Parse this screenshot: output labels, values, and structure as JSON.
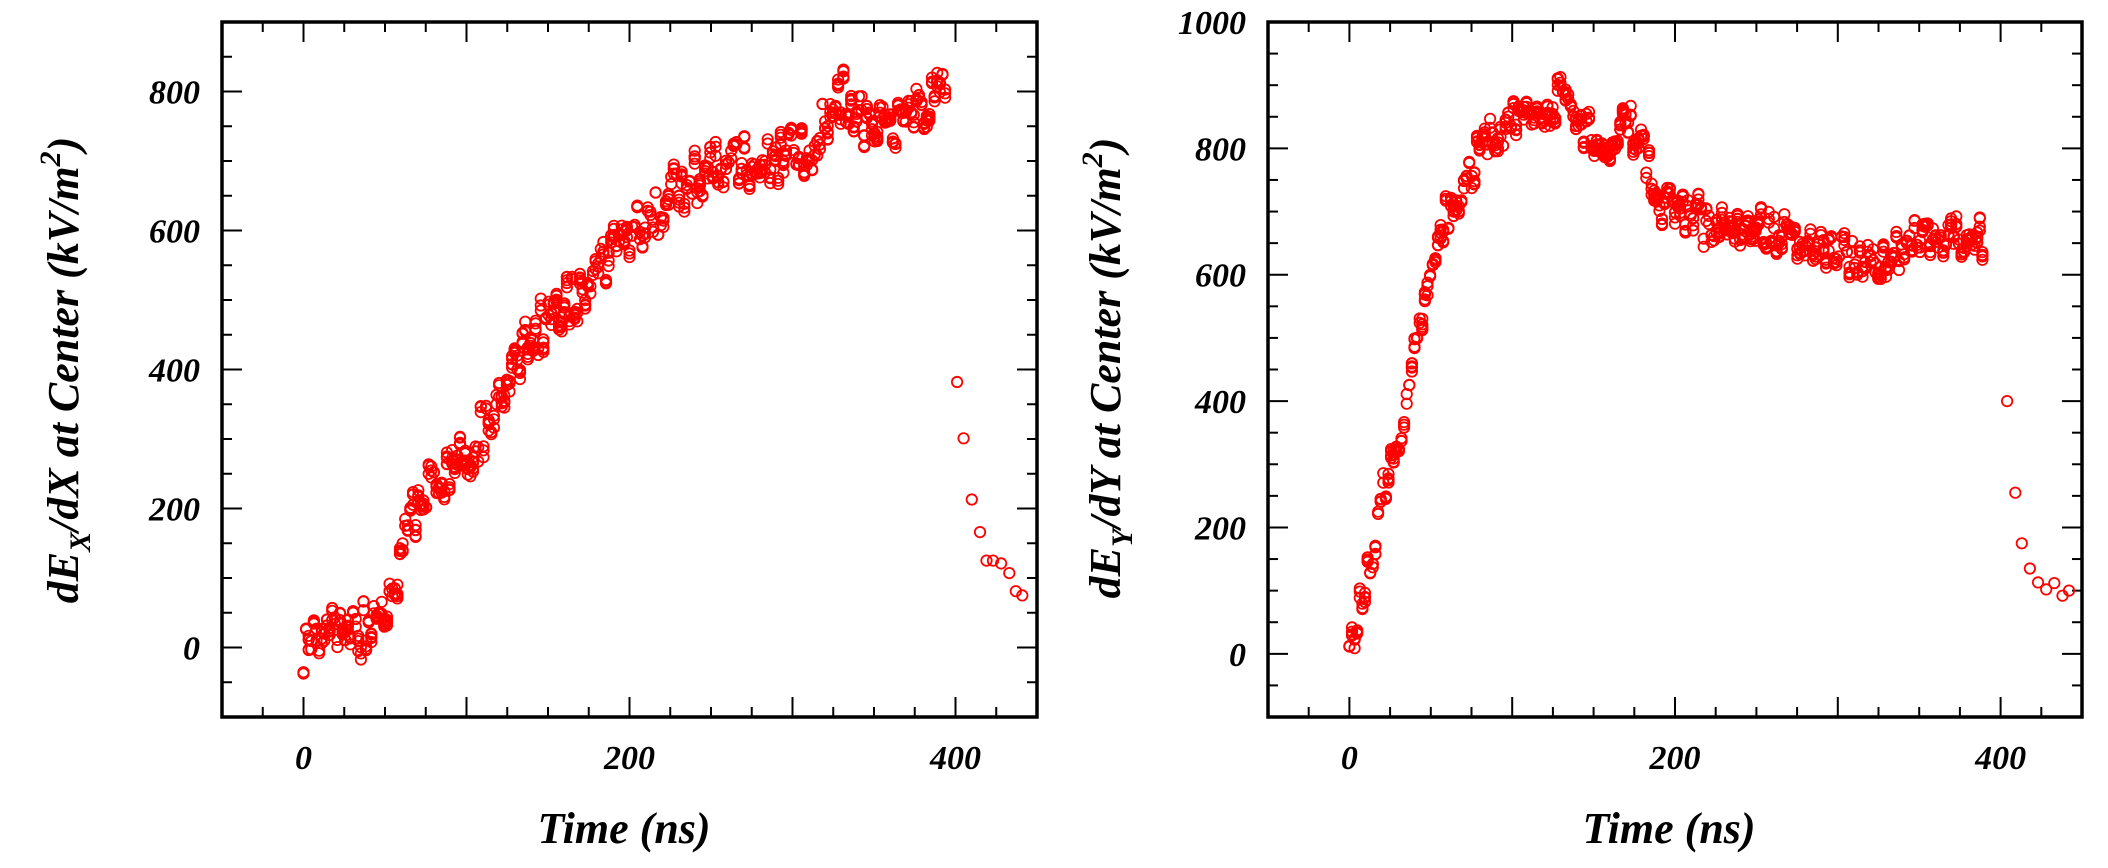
{
  "colors": {
    "marker": "#ff0000",
    "axes": "#000000",
    "background": "#ffffff"
  },
  "chart_data": [
    {
      "type": "scatter",
      "title": "",
      "xlabel": "Time (ns)",
      "ylabel": {
        "prefix": "dE",
        "subscript": "X",
        "middle": "/dX at Center (kV/m",
        "superscript": "2",
        "suffix": ")"
      },
      "xlim": [
        -50,
        450
      ],
      "ylim": [
        -100,
        900
      ],
      "xticks": [
        0,
        200,
        400
      ],
      "yticks": [
        0,
        200,
        400,
        600,
        800
      ],
      "xtick_labels": [
        "0",
        "200",
        "400"
      ],
      "ytick_labels": [
        "0",
        "200",
        "400",
        "600",
        "800"
      ],
      "grid": false,
      "legend": "none",
      "marker": "open-circle",
      "trend": [
        [
          0,
          -5
        ],
        [
          10,
          10
        ],
        [
          20,
          25
        ],
        [
          30,
          30
        ],
        [
          40,
          20
        ],
        [
          50,
          60
        ],
        [
          60,
          120
        ],
        [
          70,
          210
        ],
        [
          80,
          230
        ],
        [
          90,
          250
        ],
        [
          100,
          270
        ],
        [
          110,
          310
        ],
        [
          120,
          350
        ],
        [
          130,
          410
        ],
        [
          140,
          450
        ],
        [
          150,
          470
        ],
        [
          160,
          490
        ],
        [
          170,
          510
        ],
        [
          180,
          540
        ],
        [
          190,
          570
        ],
        [
          200,
          590
        ],
        [
          210,
          610
        ],
        [
          220,
          630
        ],
        [
          230,
          660
        ],
        [
          240,
          680
        ],
        [
          250,
          700
        ],
        [
          270,
          700
        ],
        [
          290,
          710
        ],
        [
          310,
          720
        ],
        [
          330,
          790
        ],
        [
          350,
          750
        ],
        [
          370,
          760
        ],
        [
          390,
          800
        ],
        [
          395,
          760
        ]
      ],
      "scatter": [
        10,
        70
      ],
      "tail": {
        "x": [
          401,
          405,
          410,
          415,
          419,
          423,
          428,
          433,
          437,
          441
        ],
        "y": [
          382,
          301,
          213,
          166,
          125,
          125,
          121,
          107,
          81,
          75
        ]
      }
    },
    {
      "type": "scatter",
      "title": "",
      "xlabel": "Time (ns)",
      "ylabel": {
        "prefix": "dE",
        "subscript": "Y",
        "middle": "/dY at Center (kV/m",
        "superscript": "2",
        "suffix": ")"
      },
      "xlim": [
        -50,
        450
      ],
      "ylim": [
        -100,
        1000
      ],
      "xticks": [
        0,
        200,
        400
      ],
      "yticks": [
        0,
        200,
        400,
        600,
        800,
        1000
      ],
      "xtick_labels": [
        "0",
        "200",
        "400"
      ],
      "ytick_labels": [
        "0",
        "200",
        "400",
        "600",
        "800",
        "1000"
      ],
      "grid": false,
      "legend": "none",
      "marker": "open-circle",
      "trend": [
        [
          0,
          5
        ],
        [
          5,
          50
        ],
        [
          10,
          110
        ],
        [
          15,
          160
        ],
        [
          20,
          250
        ],
        [
          25,
          290
        ],
        [
          30,
          330
        ],
        [
          35,
          390
        ],
        [
          40,
          470
        ],
        [
          45,
          550
        ],
        [
          50,
          630
        ],
        [
          55,
          680
        ],
        [
          60,
          700
        ],
        [
          70,
          740
        ],
        [
          80,
          800
        ],
        [
          90,
          820
        ],
        [
          100,
          840
        ],
        [
          110,
          860
        ],
        [
          120,
          850
        ],
        [
          130,
          880
        ],
        [
          140,
          840
        ],
        [
          150,
          820
        ],
        [
          160,
          800
        ],
        [
          170,
          840
        ],
        [
          180,
          800
        ],
        [
          190,
          710
        ],
        [
          200,
          710
        ],
        [
          220,
          680
        ],
        [
          250,
          670
        ],
        [
          280,
          650
        ],
        [
          300,
          640
        ],
        [
          320,
          620
        ],
        [
          340,
          650
        ],
        [
          360,
          660
        ],
        [
          380,
          650
        ],
        [
          390,
          660
        ]
      ],
      "scatter": [
        10,
        60
      ],
      "tail": {
        "x": [
          404,
          409,
          413,
          418,
          423,
          428,
          433,
          438,
          442
        ],
        "y": [
          400,
          255,
          175,
          135,
          113,
          102,
          112,
          92,
          100
        ]
      }
    }
  ]
}
